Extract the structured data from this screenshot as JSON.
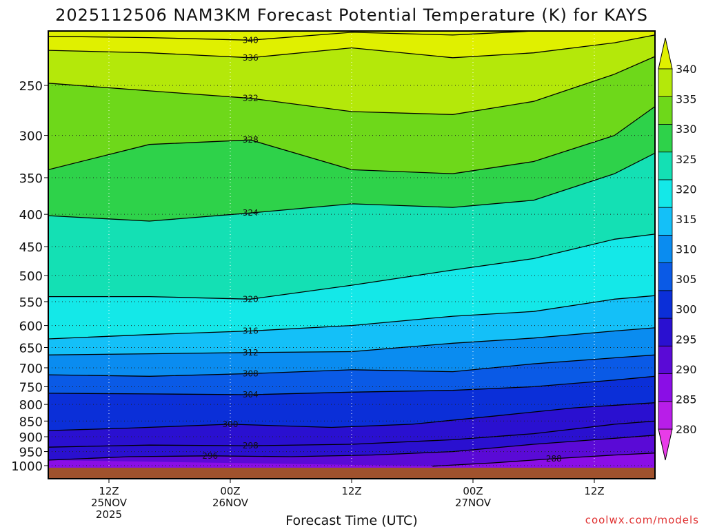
{
  "chart_data": {
    "type": "heatmap",
    "title": "2025112506 NAM3KM Forecast Potential Temperature (K) for KAYS",
    "xlabel": "Forecast Time (UTC)",
    "ylabel": "",
    "y_ticks": [
      "250",
      "300",
      "350",
      "400",
      "450",
      "500",
      "550",
      "600",
      "650",
      "700",
      "750",
      "800",
      "850",
      "900",
      "950",
      "1000"
    ],
    "y_values_hpa": [
      250,
      300,
      350,
      400,
      450,
      500,
      550,
      600,
      650,
      700,
      750,
      800,
      850,
      900,
      950,
      1000
    ],
    "x_ticks": [
      {
        "hours": 6,
        "line1": "12Z",
        "line2": "25NOV",
        "line3": "2025"
      },
      {
        "hours": 18,
        "line1": "00Z",
        "line2": "26NOV",
        "line3": ""
      },
      {
        "hours": 30,
        "line1": "12Z",
        "line2": "",
        "line3": ""
      },
      {
        "hours": 42,
        "line1": "00Z",
        "line2": "27NOV",
        "line3": ""
      },
      {
        "hours": 54,
        "line1": "12Z",
        "line2": "",
        "line3": ""
      }
    ],
    "x_range_hours": [
      0,
      60
    ],
    "y_range_hpa": [
      1020,
      200
    ],
    "colorbar": {
      "levels": [
        "280",
        "285",
        "290",
        "295",
        "300",
        "305",
        "310",
        "315",
        "320",
        "325",
        "330",
        "335",
        "340"
      ],
      "colors": [
        "#e83ce8",
        "#b81ee8",
        "#8a0ee6",
        "#5a0ad6",
        "#2a10d0",
        "#0b2fd8",
        "#0a5ae6",
        "#0a8cf0",
        "#14c0f8",
        "#14e8e8",
        "#14e0b4",
        "#2ed24a",
        "#6ed81a",
        "#b4e80a",
        "#e0f000"
      ]
    },
    "contour_labels": [
      "340",
      "336",
      "332",
      "328",
      "324",
      "320",
      "316",
      "312",
      "308",
      "304",
      "300",
      "298",
      "296",
      "288"
    ],
    "series": [
      {
        "name": "288 K",
        "values": [
          [
            38,
            1002
          ],
          [
            44,
            990
          ],
          [
            50,
            975
          ],
          [
            56,
            962
          ],
          [
            60,
            955
          ]
        ]
      },
      {
        "name": "296 K",
        "values": [
          [
            0,
            980
          ],
          [
            8,
            968
          ],
          [
            16,
            965
          ],
          [
            24,
            968
          ],
          [
            32,
            962
          ],
          [
            40,
            950
          ],
          [
            48,
            925
          ],
          [
            56,
            905
          ],
          [
            60,
            895
          ]
        ]
      },
      {
        "name": "298 K",
        "values": [
          [
            0,
            935
          ],
          [
            10,
            928
          ],
          [
            20,
            930
          ],
          [
            30,
            925
          ],
          [
            40,
            910
          ],
          [
            48,
            890
          ],
          [
            56,
            860
          ],
          [
            60,
            850
          ]
        ]
      },
      {
        "name": "300 K",
        "values": [
          [
            0,
            880
          ],
          [
            8,
            872
          ],
          [
            18,
            860
          ],
          [
            28,
            870
          ],
          [
            36,
            860
          ],
          [
            44,
            835
          ],
          [
            52,
            810
          ],
          [
            60,
            795
          ]
        ]
      },
      {
        "name": "304 K",
        "values": [
          [
            0,
            768
          ],
          [
            10,
            770
          ],
          [
            20,
            772
          ],
          [
            30,
            765
          ],
          [
            40,
            760
          ],
          [
            48,
            750
          ],
          [
            56,
            732
          ],
          [
            60,
            722
          ]
        ]
      },
      {
        "name": "308 K",
        "values": [
          [
            0,
            718
          ],
          [
            10,
            722
          ],
          [
            20,
            715
          ],
          [
            30,
            705
          ],
          [
            40,
            710
          ],
          [
            48,
            690
          ],
          [
            56,
            675
          ],
          [
            60,
            668
          ]
        ]
      },
      {
        "name": "312 K",
        "values": [
          [
            0,
            668
          ],
          [
            10,
            665
          ],
          [
            20,
            662
          ],
          [
            30,
            660
          ],
          [
            40,
            640
          ],
          [
            48,
            628
          ],
          [
            56,
            612
          ],
          [
            60,
            605
          ]
        ]
      },
      {
        "name": "316 K",
        "values": [
          [
            0,
            630
          ],
          [
            10,
            620
          ],
          [
            20,
            612
          ],
          [
            30,
            600
          ],
          [
            40,
            580
          ],
          [
            48,
            570
          ],
          [
            56,
            545
          ],
          [
            60,
            538
          ]
        ]
      },
      {
        "name": "320 K",
        "values": [
          [
            0,
            540
          ],
          [
            10,
            540
          ],
          [
            20,
            545
          ],
          [
            30,
            518
          ],
          [
            40,
            490
          ],
          [
            48,
            470
          ],
          [
            56,
            438
          ],
          [
            60,
            430
          ]
        ]
      },
      {
        "name": "324 K",
        "values": [
          [
            0,
            402
          ],
          [
            10,
            410
          ],
          [
            20,
            398
          ],
          [
            30,
            385
          ],
          [
            40,
            390
          ],
          [
            48,
            380
          ],
          [
            56,
            345
          ],
          [
            60,
            320
          ]
        ]
      },
      {
        "name": "328 K",
        "values": [
          [
            0,
            340
          ],
          [
            10,
            310
          ],
          [
            20,
            305
          ],
          [
            30,
            340
          ],
          [
            40,
            345
          ],
          [
            48,
            330
          ],
          [
            56,
            300
          ],
          [
            60,
            270
          ]
        ]
      },
      {
        "name": "332 K",
        "values": [
          [
            0,
            248
          ],
          [
            10,
            255
          ],
          [
            20,
            262
          ],
          [
            30,
            275
          ],
          [
            40,
            278
          ],
          [
            48,
            265
          ],
          [
            56,
            240
          ],
          [
            60,
            225
          ]
        ]
      },
      {
        "name": "336 K",
        "values": [
          [
            0,
            220
          ],
          [
            10,
            222
          ],
          [
            20,
            226
          ],
          [
            30,
            218
          ],
          [
            40,
            226
          ],
          [
            48,
            222
          ],
          [
            56,
            214
          ],
          [
            60,
            208
          ]
        ]
      },
      {
        "name": "340 K",
        "values": [
          [
            0,
            209
          ],
          [
            10,
            210
          ],
          [
            20,
            212
          ],
          [
            30,
            206
          ],
          [
            40,
            208
          ],
          [
            48,
            205
          ],
          [
            56,
            203
          ],
          [
            60,
            202
          ]
        ]
      }
    ]
  },
  "credit": {
    "text": "coolwx.com/models",
    "color": "#e03030"
  }
}
